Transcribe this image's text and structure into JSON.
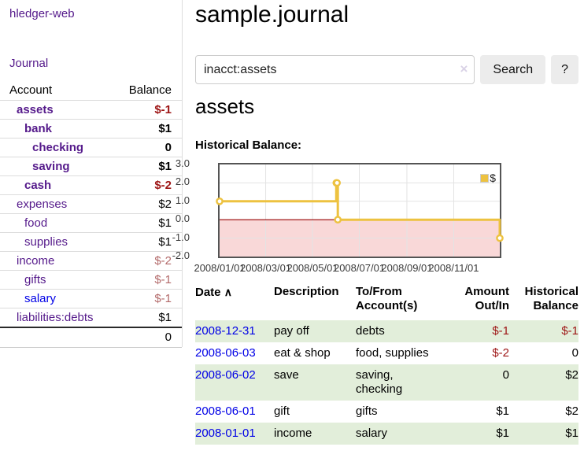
{
  "sidebar": {
    "brand": "hledger-web",
    "nav": {
      "journal": "Journal"
    },
    "accounts": {
      "col_account": "Account",
      "col_balance": "Balance",
      "rows": [
        {
          "name": "assets",
          "balance": "$-1"
        },
        {
          "name": "bank",
          "balance": "$1"
        },
        {
          "name": "checking",
          "balance": "0"
        },
        {
          "name": "saving",
          "balance": "$1"
        },
        {
          "name": "cash",
          "balance": "$-2"
        },
        {
          "name": "expenses",
          "balance": "$2"
        },
        {
          "name": "food",
          "balance": "$1"
        },
        {
          "name": "supplies",
          "balance": "$1"
        },
        {
          "name": "income",
          "balance": "$-2"
        },
        {
          "name": "gifts",
          "balance": "$-1"
        },
        {
          "name": "salary",
          "balance": "$-1"
        },
        {
          "name": "liabilities:debts",
          "balance": "$1"
        }
      ],
      "total": "0"
    }
  },
  "header": {
    "title": "sample.journal"
  },
  "search": {
    "value": "inacct:assets",
    "clear_icon": "×",
    "button_label": "Search",
    "help_label": "?"
  },
  "account_page": {
    "heading": "assets",
    "chart_label": "Historical Balance:"
  },
  "chart_data": {
    "type": "line",
    "step": true,
    "title": "Historical Balance",
    "legend": [
      {
        "label": "$",
        "color": "#edc240"
      }
    ],
    "legend_position": "top-right",
    "grid": true,
    "ylim": [
      -2.0,
      3.0
    ],
    "x_range_days": [
      0,
      365
    ],
    "y_ticks": [
      {
        "label": "3.0",
        "value": 3
      },
      {
        "label": "2.0",
        "value": 2
      },
      {
        "label": "1.0",
        "value": 1
      },
      {
        "label": "0.0",
        "value": 0
      },
      {
        "label": "-1.0",
        "value": -1
      },
      {
        "label": "-2.0",
        "value": -2
      }
    ],
    "x_ticks": [
      {
        "label": "2008/01/01",
        "day": 0
      },
      {
        "label": "2008/03/01",
        "day": 60
      },
      {
        "label": "2008/05/01",
        "day": 121
      },
      {
        "label": "2008/07/01",
        "day": 182
      },
      {
        "label": "2008/09/01",
        "day": 244
      },
      {
        "label": "2008/11/01",
        "day": 305
      }
    ],
    "series": [
      {
        "name": "$",
        "points": [
          {
            "date": "2008-01-01",
            "day": 0,
            "value": 1
          },
          {
            "date": "2008-06-01",
            "day": 152,
            "value": 2
          },
          {
            "date": "2008-06-02",
            "day": 153,
            "value": 2
          },
          {
            "date": "2008-06-03",
            "day": 154,
            "value": 0
          },
          {
            "date": "2008-12-31",
            "day": 365,
            "value": -1
          }
        ]
      }
    ]
  },
  "register": {
    "columns": {
      "date": "Date",
      "sort_caret": "∧",
      "description": "Description",
      "accounts": "To/From Account(s)",
      "amount": "Amount Out/In",
      "balance": "Historical Balance"
    },
    "rows": [
      {
        "date": "2008-12-31",
        "description": "pay off",
        "accounts": "debts",
        "amount": "$-1",
        "balance": "$-1"
      },
      {
        "date": "2008-06-03",
        "description": "eat & shop",
        "accounts": "food, supplies",
        "amount": "$-2",
        "balance": "0"
      },
      {
        "date": "2008-06-02",
        "description": "save",
        "accounts": "saving, checking",
        "amount": "0",
        "balance": "$2"
      },
      {
        "date": "2008-06-01",
        "description": "gift",
        "accounts": "gifts",
        "amount": "$1",
        "balance": "$2"
      },
      {
        "date": "2008-01-01",
        "description": "income",
        "accounts": "salary",
        "amount": "$1",
        "balance": "$1"
      }
    ]
  },
  "colors": {
    "link_purple": "#551a8b",
    "link_blue": "#0000e6",
    "negative_strong": "#9d1414",
    "negative_muted": "#b36a6a",
    "row_stripe_green": "#e2eeda",
    "chart_line_gold": "#edc240",
    "chart_negative_fill": "#f9d8d8",
    "chart_zero_line": "#990000",
    "chart_grid": "#e3e3e3",
    "chart_border": "#545454",
    "button_bg": "#ececec"
  }
}
